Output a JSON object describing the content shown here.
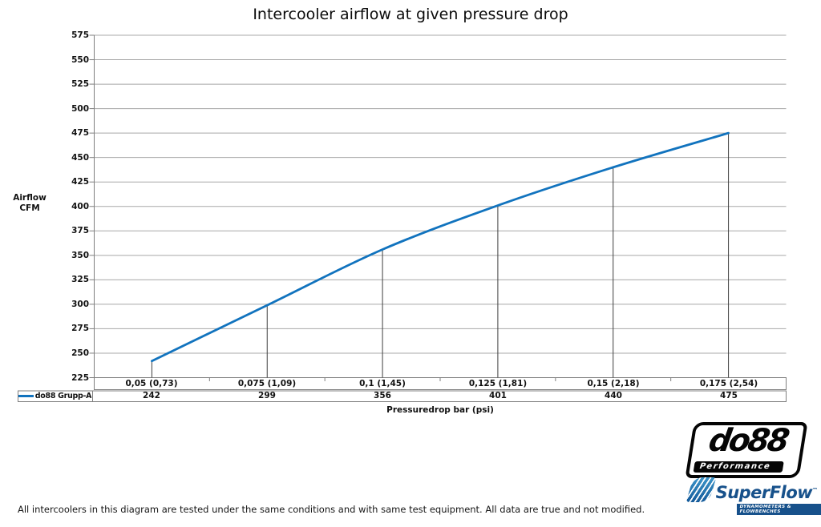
{
  "chart_data": {
    "type": "line",
    "title": "Intercooler airflow at given pressure drop",
    "xlabel": "Pressuredrop bar (psi)",
    "ylabel": "Airflow\nCFM",
    "categories": [
      "0,05 (0,73)",
      "0,075 (1,09)",
      "0,1 (1,45)",
      "0,125 (1,81)",
      "0,15 (2,18)",
      "0,175 (2,54)"
    ],
    "series": [
      {
        "name": "do88 Grupp-A",
        "values": [
          242,
          299,
          356,
          401,
          440,
          475
        ],
        "color": "#1173be"
      }
    ],
    "ylim": [
      225,
      575
    ],
    "ytick_step": 25,
    "grid": true,
    "smooth": true,
    "drop_lines": true,
    "legend_position": "bottom-left"
  },
  "footer": {
    "disclaimer": "All intercoolers in this diagram are tested under the same conditions and with same test equipment. All data are true and not modified."
  },
  "logos": {
    "do88": {
      "name": "do88",
      "tagline": "Performance"
    },
    "superflow": {
      "name": "SuperFlow",
      "tm": "™",
      "tagline": "DYNAMOMETERS & FLOWBENCHES"
    }
  },
  "colors": {
    "series_blue": "#1173be",
    "gridline": "#a8a8a8",
    "axis_border": "#7f7f7f",
    "drop_line": "#3f3f3f",
    "superflow_blue": "#17518b",
    "logo_black": "#050505"
  }
}
